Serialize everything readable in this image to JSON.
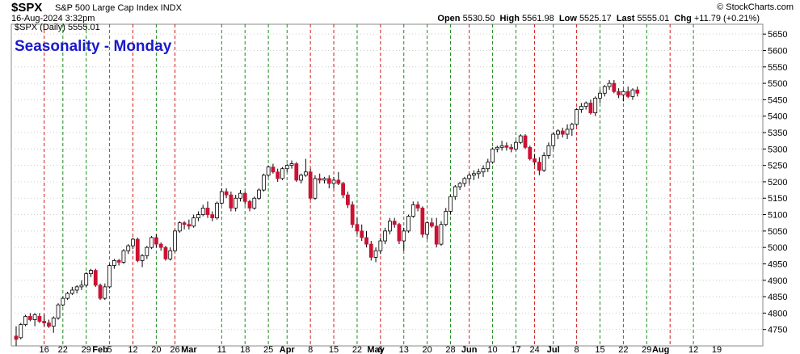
{
  "header": {
    "symbol": "$SPX",
    "name": "S&P 500 Large Cap Index INDX",
    "date": "16-Aug-2024 3:32pm",
    "copyright": "© StockCharts.com",
    "open_label": "Open",
    "open": "5530.50",
    "high_label": "High",
    "high": "5561.98",
    "low_label": "Low",
    "low": "5525.17",
    "last_label": "Last",
    "last": "5555.01",
    "chg_label": "Chg",
    "chg": "+11.79 (+0.21%)"
  },
  "overlay": {
    "title": "Seasonality - Monday",
    "legend": "$SPX (Daily) 5555.01"
  },
  "colors": {
    "up": "#ffffff",
    "down": "#cc1133",
    "outline": "#000000",
    "green_line": "#1a8a1a",
    "red_line": "#cc1a1a",
    "title": "#1a1acc"
  },
  "chart_data": {
    "type": "candlestick",
    "title": "Seasonality - Monday",
    "ylim": [
      4700,
      5680
    ],
    "y_ticks": [
      4750,
      4800,
      4850,
      4900,
      4950,
      5000,
      5050,
      5100,
      5150,
      5200,
      5250,
      5300,
      5350,
      5400,
      5450,
      5500,
      5550,
      5600,
      5650
    ],
    "x_ticks": [
      {
        "label": "16",
        "i": 6
      },
      {
        "label": "22",
        "i": 10
      },
      {
        "label": "29",
        "i": 15
      },
      {
        "label": "Feb",
        "i": 18
      },
      {
        "label": "5",
        "i": 20
      },
      {
        "label": "12",
        "i": 25
      },
      {
        "label": "20",
        "i": 30
      },
      {
        "label": "26",
        "i": 34
      },
      {
        "label": "Mar",
        "i": 37
      },
      {
        "label": "11",
        "i": 44
      },
      {
        "label": "18",
        "i": 49
      },
      {
        "label": "25",
        "i": 54
      },
      {
        "label": "Apr",
        "i": 58
      },
      {
        "label": "8",
        "i": 63
      },
      {
        "label": "15",
        "i": 68
      },
      {
        "label": "22",
        "i": 73
      },
      {
        "label": "May",
        "i": 77
      },
      {
        "label": "6",
        "i": 78
      },
      {
        "label": "13",
        "i": 83
      },
      {
        "label": "20",
        "i": 88
      },
      {
        "label": "28",
        "i": 93
      },
      {
        "label": "Jun",
        "i": 97
      },
      {
        "label": "10",
        "i": 102
      },
      {
        "label": "17",
        "i": 107
      },
      {
        "label": "24",
        "i": 111
      },
      {
        "label": "Jul",
        "i": 115
      },
      {
        "label": "8",
        "i": 120
      },
      {
        "label": "15",
        "i": 125
      },
      {
        "label": "22",
        "i": 130
      },
      {
        "label": "29",
        "i": 135
      },
      {
        "label": "Aug",
        "i": 138
      },
      {
        "label": "12",
        "i": 145
      },
      {
        "label": "19",
        "i": 150
      }
    ],
    "vlines_green": [
      10,
      15,
      20,
      30,
      44,
      49,
      54,
      58,
      73,
      83,
      88,
      93,
      102,
      107,
      115,
      125,
      130,
      135,
      145
    ],
    "vlines_red": [
      6,
      25,
      34,
      63,
      68,
      78,
      97,
      111,
      120,
      140
    ],
    "ohlc": [
      [
        4730,
        4760,
        4700,
        4720
      ],
      [
        4725,
        4770,
        4720,
        4765
      ],
      [
        4765,
        4795,
        4760,
        4790
      ],
      [
        4790,
        4800,
        4775,
        4780
      ],
      [
        4780,
        4800,
        4760,
        4795
      ],
      [
        4790,
        4800,
        4770,
        4775
      ],
      [
        4775,
        4795,
        4760,
        4770
      ],
      [
        4770,
        4780,
        4755,
        4760
      ],
      [
        4760,
        4790,
        4740,
        4785
      ],
      [
        4785,
        4830,
        4780,
        4825
      ],
      [
        4825,
        4850,
        4820,
        4845
      ],
      [
        4845,
        4865,
        4840,
        4860
      ],
      [
        4860,
        4880,
        4855,
        4870
      ],
      [
        4870,
        4885,
        4860,
        4880
      ],
      [
        4880,
        4900,
        4870,
        4885
      ],
      [
        4885,
        4925,
        4880,
        4920
      ],
      [
        4920,
        4935,
        4910,
        4930
      ],
      [
        4930,
        4935,
        4880,
        4885
      ],
      [
        4885,
        4890,
        4840,
        4845
      ],
      [
        4845,
        4890,
        4840,
        4880
      ],
      [
        4880,
        4950,
        4875,
        4945
      ],
      [
        4945,
        4965,
        4935,
        4960
      ],
      [
        4960,
        4965,
        4945,
        4955
      ],
      [
        4955,
        4995,
        4950,
        4990
      ],
      [
        4990,
        5010,
        4980,
        5005
      ],
      [
        5005,
        5030,
        4995,
        5025
      ],
      [
        5025,
        5030,
        4955,
        4960
      ],
      [
        4960,
        4980,
        4940,
        4975
      ],
      [
        4975,
        5005,
        4965,
        5000
      ],
      [
        5000,
        5035,
        4995,
        5030
      ],
      [
        5030,
        5040,
        5000,
        5010
      ],
      [
        5010,
        5015,
        4990,
        5000
      ],
      [
        5000,
        5005,
        4960,
        4965
      ],
      [
        4965,
        5000,
        4960,
        4990
      ],
      [
        4990,
        5055,
        4985,
        5050
      ],
      [
        5050,
        5080,
        5045,
        5075
      ],
      [
        5075,
        5080,
        5055,
        5070
      ],
      [
        5070,
        5085,
        5055,
        5065
      ],
      [
        5065,
        5100,
        5060,
        5090
      ],
      [
        5090,
        5110,
        5080,
        5100
      ],
      [
        5100,
        5130,
        5095,
        5120
      ],
      [
        5120,
        5140,
        5090,
        5100
      ],
      [
        5100,
        5110,
        5080,
        5090
      ],
      [
        5090,
        5140,
        5085,
        5135
      ],
      [
        5135,
        5180,
        5130,
        5170
      ],
      [
        5170,
        5180,
        5150,
        5160
      ],
      [
        5160,
        5170,
        5110,
        5120
      ],
      [
        5120,
        5160,
        5110,
        5150
      ],
      [
        5150,
        5175,
        5140,
        5165
      ],
      [
        5165,
        5170,
        5130,
        5140
      ],
      [
        5140,
        5145,
        5110,
        5120
      ],
      [
        5120,
        5155,
        5115,
        5150
      ],
      [
        5150,
        5180,
        5145,
        5175
      ],
      [
        5175,
        5225,
        5170,
        5220
      ],
      [
        5220,
        5250,
        5215,
        5245
      ],
      [
        5245,
        5255,
        5225,
        5230
      ],
      [
        5230,
        5240,
        5200,
        5210
      ],
      [
        5210,
        5245,
        5205,
        5240
      ],
      [
        5240,
        5255,
        5230,
        5250
      ],
      [
        5250,
        5265,
        5240,
        5255
      ],
      [
        5255,
        5260,
        5200,
        5205
      ],
      [
        5205,
        5225,
        5195,
        5220
      ],
      [
        5220,
        5270,
        5215,
        5230
      ],
      [
        5230,
        5240,
        5145,
        5150
      ],
      [
        5150,
        5220,
        5145,
        5210
      ],
      [
        5210,
        5225,
        5195,
        5205
      ],
      [
        5205,
        5215,
        5195,
        5210
      ],
      [
        5210,
        5220,
        5180,
        5195
      ],
      [
        5195,
        5215,
        5180,
        5205
      ],
      [
        5205,
        5230,
        5190,
        5195
      ],
      [
        5195,
        5200,
        5150,
        5160
      ],
      [
        5160,
        5170,
        5120,
        5130
      ],
      [
        5130,
        5140,
        5060,
        5070
      ],
      [
        5070,
        5090,
        5040,
        5050
      ],
      [
        5050,
        5070,
        5020,
        5030
      ],
      [
        5030,
        5050,
        5000,
        5010
      ],
      [
        5010,
        5020,
        4960,
        4970
      ],
      [
        4970,
        5000,
        4955,
        4990
      ],
      [
        4990,
        5030,
        4980,
        5020
      ],
      [
        5020,
        5060,
        5010,
        5050
      ],
      [
        5050,
        5090,
        5040,
        5080
      ],
      [
        5080,
        5090,
        5060,
        5070
      ],
      [
        5070,
        5075,
        5010,
        5020
      ],
      [
        5020,
        5060,
        4990,
        5050
      ],
      [
        5050,
        5100,
        5045,
        5095
      ],
      [
        5095,
        5140,
        5090,
        5130
      ],
      [
        5130,
        5140,
        5110,
        5120
      ],
      [
        5120,
        5125,
        5030,
        5040
      ],
      [
        5040,
        5080,
        5025,
        5075
      ],
      [
        5075,
        5090,
        5060,
        5065
      ],
      [
        5065,
        5090,
        5000,
        5010
      ],
      [
        5010,
        5080,
        5005,
        5070
      ],
      [
        5070,
        5120,
        5065,
        5110
      ],
      [
        5110,
        5160,
        5100,
        5155
      ],
      [
        5155,
        5190,
        5145,
        5185
      ],
      [
        5185,
        5200,
        5175,
        5195
      ],
      [
        5195,
        5215,
        5185,
        5210
      ],
      [
        5210,
        5225,
        5195,
        5220
      ],
      [
        5220,
        5235,
        5205,
        5225
      ],
      [
        5225,
        5240,
        5210,
        5230
      ],
      [
        5230,
        5250,
        5215,
        5240
      ],
      [
        5240,
        5270,
        5230,
        5260
      ],
      [
        5260,
        5305,
        5255,
        5300
      ],
      [
        5300,
        5310,
        5290,
        5305
      ],
      [
        5305,
        5325,
        5295,
        5310
      ],
      [
        5310,
        5320,
        5295,
        5305
      ],
      [
        5305,
        5315,
        5290,
        5300
      ],
      [
        5300,
        5325,
        5295,
        5320
      ],
      [
        5320,
        5345,
        5315,
        5340
      ],
      [
        5340,
        5345,
        5300,
        5305
      ],
      [
        5305,
        5310,
        5265,
        5270
      ],
      [
        5270,
        5285,
        5250,
        5260
      ],
      [
        5260,
        5275,
        5220,
        5235
      ],
      [
        5235,
        5290,
        5230,
        5280
      ],
      [
        5280,
        5320,
        5270,
        5310
      ],
      [
        5310,
        5350,
        5300,
        5345
      ],
      [
        5345,
        5360,
        5330,
        5355
      ],
      [
        5355,
        5365,
        5335,
        5345
      ],
      [
        5345,
        5375,
        5330,
        5360
      ],
      [
        5360,
        5380,
        5340,
        5375
      ],
      [
        5375,
        5425,
        5370,
        5420
      ],
      [
        5420,
        5440,
        5410,
        5430
      ],
      [
        5430,
        5445,
        5420,
        5440
      ],
      [
        5440,
        5450,
        5405,
        5410
      ],
      [
        5410,
        5460,
        5400,
        5455
      ],
      [
        5455,
        5480,
        5440,
        5470
      ],
      [
        5470,
        5495,
        5460,
        5490
      ],
      [
        5490,
        5510,
        5480,
        5500
      ],
      [
        5500,
        5510,
        5470,
        5475
      ],
      [
        5475,
        5485,
        5455,
        5465
      ],
      [
        5465,
        5480,
        5445,
        5475
      ],
      [
        5475,
        5490,
        5455,
        5460
      ],
      [
        5460,
        5485,
        5450,
        5480
      ],
      [
        5480,
        5490,
        5460,
        5470
      ]
    ]
  }
}
